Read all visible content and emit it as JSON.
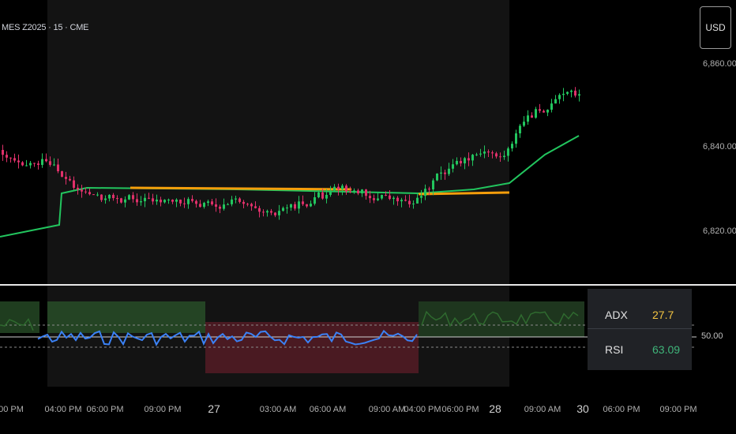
{
  "header": {
    "symbol": "MES Z2025 · 15 · CME",
    "currency": "USD"
  },
  "price_axis": {
    "labels": [
      "6,860.00",
      "6,840.00",
      "6,820.00"
    ]
  },
  "indicator": {
    "rsi_level": "50.00",
    "adx_label": "ADX",
    "adx_value": "27.7",
    "adx_color": "#f4c542",
    "rsi_label": "RSI",
    "rsi_value": "63.09",
    "rsi_color": "#3fb57a"
  },
  "time_axis": {
    "labels": [
      "00 PM",
      "04:00 PM",
      "06:00 PM",
      "09:00 PM",
      "27",
      "03:00 AM",
      "06:00 AM",
      "09:00 AM",
      "04:00 PM",
      "06:00 PM",
      "28",
      "09:00 AM",
      "30",
      "06:00 PM",
      "09:00 PM"
    ]
  },
  "colors": {
    "bull": "#22c55e",
    "bear": "#e0306a",
    "ema": "#22c55e",
    "vwap": "#f59e0b",
    "rsi_line": "#3b82f6"
  }
}
